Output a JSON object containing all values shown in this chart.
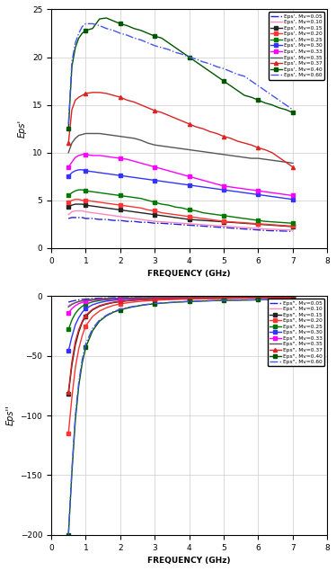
{
  "mv_values": [
    0.05,
    0.1,
    0.15,
    0.2,
    0.25,
    0.3,
    0.33,
    0.35,
    0.37,
    0.4,
    0.6
  ],
  "color_map": {
    "0.05": "#2222DD",
    "0.10": "#FF88BB",
    "0.15": "#222222",
    "0.20": "#FF3333",
    "0.25": "#007700",
    "0.30": "#3333FF",
    "0.33": "#FF00FF",
    "0.35": "#555555",
    "0.37": "#DD2222",
    "0.40": "#005500",
    "0.60": "#4455EE"
  },
  "ls_map": {
    "0.05": "dashdot",
    "0.10": "solid",
    "0.15": "solid",
    "0.20": "solid",
    "0.25": "solid",
    "0.30": "solid",
    "0.33": "solid",
    "0.35": "solid",
    "0.37": "solid",
    "0.40": "solid",
    "0.60": "dashdot"
  },
  "marker_map": {
    "0.05": null,
    "0.10": null,
    "0.15": "s",
    "0.20": "s",
    "0.25": "s",
    "0.30": "s",
    "0.33": "s",
    "0.35": null,
    "0.37": "^",
    "0.40": "s",
    "0.60": null
  },
  "freq": [
    0.5,
    0.6,
    0.7,
    0.8,
    0.9,
    1.0,
    1.2,
    1.4,
    1.6,
    1.8,
    2.0,
    2.2,
    2.4,
    2.6,
    2.8,
    3.0,
    3.2,
    3.4,
    3.6,
    3.8,
    4.0,
    4.2,
    4.4,
    4.6,
    4.8,
    5.0,
    5.2,
    5.4,
    5.6,
    5.8,
    6.0,
    6.2,
    6.4,
    6.6,
    6.8,
    7.0
  ],
  "eps_real": {
    "0.60": [
      13.0,
      19.5,
      21.5,
      22.5,
      23.2,
      23.5,
      23.5,
      23.3,
      23.0,
      22.8,
      22.5,
      22.3,
      22.0,
      21.8,
      21.5,
      21.2,
      21.0,
      20.8,
      20.5,
      20.3,
      20.0,
      19.8,
      19.5,
      19.3,
      19.0,
      18.8,
      18.5,
      18.2,
      18.0,
      17.5,
      17.0,
      16.5,
      16.0,
      15.5,
      15.0,
      14.5
    ],
    "0.40": [
      12.5,
      19.0,
      21.0,
      22.0,
      22.5,
      22.8,
      23.0,
      24.0,
      24.1,
      23.8,
      23.5,
      23.3,
      23.0,
      22.8,
      22.5,
      22.2,
      22.0,
      21.5,
      21.0,
      20.5,
      20.0,
      19.5,
      19.0,
      18.5,
      18.0,
      17.5,
      17.0,
      16.5,
      16.0,
      15.8,
      15.5,
      15.2,
      15.0,
      14.7,
      14.5,
      14.2
    ],
    "0.37": [
      11.0,
      14.5,
      15.5,
      15.8,
      16.0,
      16.2,
      16.3,
      16.3,
      16.2,
      16.0,
      15.8,
      15.5,
      15.3,
      15.0,
      14.7,
      14.4,
      14.2,
      13.9,
      13.6,
      13.3,
      13.0,
      12.7,
      12.5,
      12.2,
      12.0,
      11.7,
      11.5,
      11.2,
      11.0,
      10.8,
      10.5,
      10.3,
      10.0,
      9.5,
      9.0,
      8.5
    ],
    "0.35": [
      10.0,
      11.0,
      11.5,
      11.8,
      11.9,
      12.0,
      12.0,
      12.0,
      11.9,
      11.8,
      11.7,
      11.6,
      11.5,
      11.3,
      11.0,
      10.8,
      10.7,
      10.6,
      10.5,
      10.4,
      10.3,
      10.2,
      10.1,
      10.0,
      9.9,
      9.8,
      9.7,
      9.6,
      9.5,
      9.4,
      9.4,
      9.3,
      9.2,
      9.1,
      9.0,
      8.9
    ],
    "0.33": [
      8.5,
      9.0,
      9.5,
      9.7,
      9.8,
      9.8,
      9.7,
      9.7,
      9.6,
      9.5,
      9.4,
      9.3,
      9.1,
      8.9,
      8.7,
      8.5,
      8.3,
      8.1,
      7.9,
      7.7,
      7.5,
      7.3,
      7.1,
      6.9,
      6.7,
      6.5,
      6.4,
      6.3,
      6.2,
      6.1,
      6.0,
      5.9,
      5.8,
      5.7,
      5.6,
      5.5
    ],
    "0.30": [
      7.5,
      7.9,
      8.1,
      8.2,
      8.2,
      8.1,
      8.0,
      7.9,
      7.8,
      7.7,
      7.6,
      7.5,
      7.4,
      7.3,
      7.2,
      7.1,
      7.0,
      6.9,
      6.8,
      6.7,
      6.6,
      6.5,
      6.4,
      6.3,
      6.2,
      6.1,
      6.0,
      5.9,
      5.8,
      5.7,
      5.6,
      5.5,
      5.4,
      5.3,
      5.2,
      5.1
    ],
    "0.25": [
      5.5,
      5.8,
      6.0,
      6.1,
      6.1,
      6.0,
      5.9,
      5.8,
      5.7,
      5.6,
      5.5,
      5.4,
      5.3,
      5.2,
      5.0,
      4.8,
      4.6,
      4.5,
      4.3,
      4.2,
      4.0,
      3.9,
      3.7,
      3.6,
      3.5,
      3.4,
      3.3,
      3.2,
      3.1,
      3.0,
      2.9,
      2.8,
      2.75,
      2.7,
      2.65,
      2.6
    ],
    "0.20": [
      4.8,
      5.0,
      5.1,
      5.1,
      5.0,
      5.0,
      4.9,
      4.8,
      4.7,
      4.6,
      4.5,
      4.4,
      4.3,
      4.2,
      4.0,
      3.9,
      3.7,
      3.6,
      3.5,
      3.4,
      3.3,
      3.2,
      3.1,
      3.0,
      2.9,
      2.8,
      2.75,
      2.7,
      2.65,
      2.6,
      2.55,
      2.5,
      2.45,
      2.4,
      2.35,
      2.3
    ],
    "0.15": [
      4.3,
      4.5,
      4.6,
      4.6,
      4.6,
      4.5,
      4.4,
      4.3,
      4.2,
      4.1,
      4.0,
      3.9,
      3.8,
      3.7,
      3.6,
      3.5,
      3.4,
      3.3,
      3.2,
      3.1,
      3.0,
      2.95,
      2.9,
      2.85,
      2.8,
      2.75,
      2.7,
      2.65,
      2.6,
      2.55,
      2.5,
      2.45,
      2.4,
      2.35,
      2.3,
      2.25
    ],
    "0.10": [
      3.5,
      3.8,
      3.9,
      3.9,
      3.9,
      3.8,
      3.7,
      3.6,
      3.5,
      3.4,
      3.3,
      3.2,
      3.1,
      3.0,
      2.9,
      2.8,
      2.75,
      2.7,
      2.65,
      2.6,
      2.55,
      2.5,
      2.45,
      2.4,
      2.35,
      2.3,
      2.25,
      2.2,
      2.15,
      2.1,
      2.05,
      2.0,
      1.97,
      1.94,
      1.91,
      1.88
    ],
    "0.05": [
      3.1,
      3.2,
      3.2,
      3.2,
      3.2,
      3.1,
      3.1,
      3.0,
      3.0,
      2.9,
      2.9,
      2.8,
      2.8,
      2.7,
      2.7,
      2.6,
      2.6,
      2.55,
      2.5,
      2.45,
      2.4,
      2.35,
      2.3,
      2.25,
      2.2,
      2.15,
      2.1,
      2.05,
      2.0,
      1.95,
      1.9,
      1.85,
      1.82,
      1.8,
      1.78,
      1.75
    ]
  },
  "eps_imag": {
    "0.60": [
      -200.0,
      -145.0,
      -100.0,
      -72.0,
      -53.0,
      -40.0,
      -27.0,
      -20.0,
      -16.0,
      -13.0,
      -11.0,
      -9.5,
      -8.5,
      -7.5,
      -6.8,
      -6.2,
      -5.7,
      -5.3,
      -5.0,
      -4.7,
      -4.4,
      -4.2,
      -4.0,
      -3.8,
      -3.6,
      -3.5,
      -3.4,
      -3.3,
      -3.2,
      -3.1,
      -3.0,
      -2.9,
      -2.8,
      -2.75,
      -2.7,
      -2.65
    ],
    "0.40": [
      -200.0,
      -148.0,
      -104.0,
      -75.0,
      -56.0,
      -43.0,
      -29.0,
      -21.0,
      -16.5,
      -13.5,
      -11.5,
      -10.0,
      -8.8,
      -7.8,
      -7.0,
      -6.4,
      -5.9,
      -5.5,
      -5.1,
      -4.8,
      -4.5,
      -4.3,
      -4.1,
      -3.9,
      -3.7,
      -3.6,
      -3.5,
      -3.4,
      -3.3,
      -3.2,
      -3.1,
      -3.0,
      -2.9,
      -2.85,
      -2.8,
      -2.75
    ],
    "0.37": [
      -80.0,
      -55.0,
      -38.0,
      -28.0,
      -21.0,
      -16.0,
      -11.0,
      -8.0,
      -6.3,
      -5.1,
      -4.3,
      -3.7,
      -3.3,
      -2.9,
      -2.6,
      -2.4,
      -2.2,
      -2.1,
      -2.0,
      -1.9,
      -1.82,
      -1.75,
      -1.68,
      -1.62,
      -1.58,
      -1.54,
      -1.5,
      -1.46,
      -1.43,
      -1.4,
      -1.37,
      -1.34,
      -1.31,
      -1.28,
      -1.25,
      -1.22
    ],
    "0.35": [
      -9.0,
      -7.0,
      -5.5,
      -4.5,
      -3.8,
      -3.3,
      -2.7,
      -2.3,
      -2.0,
      -1.8,
      -1.65,
      -1.55,
      -1.48,
      -1.42,
      -1.37,
      -1.33,
      -1.29,
      -1.26,
      -1.23,
      -1.2,
      -1.18,
      -1.16,
      -1.14,
      -1.12,
      -1.1,
      -1.08,
      -1.06,
      -1.04,
      -1.02,
      -1.01,
      -1.0,
      -0.99,
      -0.98,
      -0.97,
      -0.96,
      -0.95
    ],
    "0.33": [
      -14.0,
      -10.5,
      -8.0,
      -6.3,
      -5.2,
      -4.4,
      -3.5,
      -2.9,
      -2.5,
      -2.2,
      -2.0,
      -1.85,
      -1.75,
      -1.65,
      -1.58,
      -1.52,
      -1.46,
      -1.41,
      -1.37,
      -1.34,
      -1.31,
      -1.28,
      -1.25,
      -1.23,
      -1.21,
      -1.19,
      -1.17,
      -1.15,
      -1.14,
      -1.12,
      -1.11,
      -1.1,
      -1.09,
      -1.08,
      -1.07,
      -1.06
    ],
    "0.30": [
      -46.0,
      -34.0,
      -24.0,
      -18.0,
      -13.5,
      -10.5,
      -7.2,
      -5.4,
      -4.2,
      -3.5,
      -3.0,
      -2.6,
      -2.35,
      -2.15,
      -1.98,
      -1.85,
      -1.73,
      -1.63,
      -1.55,
      -1.48,
      -1.42,
      -1.37,
      -1.33,
      -1.3,
      -1.27,
      -1.24,
      -1.21,
      -1.18,
      -1.16,
      -1.14,
      -1.12,
      -1.1,
      -1.09,
      -1.07,
      -1.06,
      -1.05
    ],
    "0.25": [
      -28.0,
      -20.0,
      -14.5,
      -11.0,
      -8.5,
      -6.7,
      -4.8,
      -3.7,
      -3.0,
      -2.5,
      -2.2,
      -2.0,
      -1.82,
      -1.68,
      -1.56,
      -1.47,
      -1.39,
      -1.33,
      -1.28,
      -1.23,
      -1.19,
      -1.16,
      -1.13,
      -1.11,
      -1.09,
      -1.07,
      -1.05,
      -1.03,
      -1.01,
      -0.99,
      -0.97,
      -0.96,
      -0.95,
      -0.93,
      -0.92,
      -0.91
    ],
    "0.20": [
      -115.0,
      -85.0,
      -60.0,
      -44.0,
      -33.0,
      -25.0,
      -17.0,
      -12.5,
      -9.8,
      -7.8,
      -6.5,
      -5.6,
      -4.9,
      -4.3,
      -3.9,
      -3.5,
      -3.2,
      -3.0,
      -2.8,
      -2.6,
      -2.5,
      -2.4,
      -2.3,
      -2.2,
      -2.1,
      -2.0,
      -1.92,
      -1.85,
      -1.78,
      -1.72,
      -1.66,
      -1.61,
      -1.57,
      -1.53,
      -1.49,
      -1.46
    ],
    "0.15": [
      -82.0,
      -58.0,
      -41.0,
      -30.0,
      -22.0,
      -17.0,
      -11.5,
      -8.5,
      -6.7,
      -5.4,
      -4.6,
      -4.0,
      -3.5,
      -3.1,
      -2.8,
      -2.6,
      -2.4,
      -2.2,
      -2.1,
      -2.0,
      -1.9,
      -1.82,
      -1.75,
      -1.68,
      -1.62,
      -1.56,
      -1.51,
      -1.46,
      -1.42,
      -1.38,
      -1.34,
      -1.31,
      -1.28,
      -1.25,
      -1.22,
      -1.2
    ],
    "0.10": [
      -8.0,
      -6.5,
      -5.5,
      -4.7,
      -4.0,
      -3.5,
      -2.8,
      -2.4,
      -2.1,
      -1.8,
      -1.6,
      -1.5,
      -1.4,
      -1.3,
      -1.22,
      -1.15,
      -1.1,
      -1.05,
      -1.01,
      -0.98,
      -0.95,
      -0.92,
      -0.9,
      -0.88,
      -0.86,
      -0.84,
      -0.82,
      -0.8,
      -0.78,
      -0.77,
      -0.76,
      -0.75,
      -0.73,
      -0.72,
      -0.71,
      -0.7
    ],
    "0.05": [
      -5.0,
      -4.2,
      -3.6,
      -3.1,
      -2.7,
      -2.4,
      -2.0,
      -1.7,
      -1.5,
      -1.35,
      -1.22,
      -1.12,
      -1.04,
      -0.97,
      -0.92,
      -0.87,
      -0.83,
      -0.79,
      -0.76,
      -0.73,
      -0.71,
      -0.69,
      -0.67,
      -0.65,
      -0.64,
      -0.62,
      -0.61,
      -0.6,
      -0.59,
      -0.58,
      -0.57,
      -0.56,
      -0.55,
      -0.54,
      -0.53,
      -0.52
    ]
  },
  "xlabel": "FREQUENCY (GHz)",
  "ylabel_real": "Eps'",
  "ylabel_imag": "Eps''",
  "xlim": [
    0,
    8
  ],
  "ylim_real": [
    0,
    25
  ],
  "ylim_imag": [
    -200,
    0
  ],
  "xticks": [
    0,
    1,
    2,
    3,
    4,
    5,
    6,
    7,
    8
  ],
  "yticks_real": [
    0,
    5,
    10,
    15,
    20,
    25
  ],
  "yticks_imag": [
    -200,
    -150,
    -100,
    -50,
    0
  ]
}
